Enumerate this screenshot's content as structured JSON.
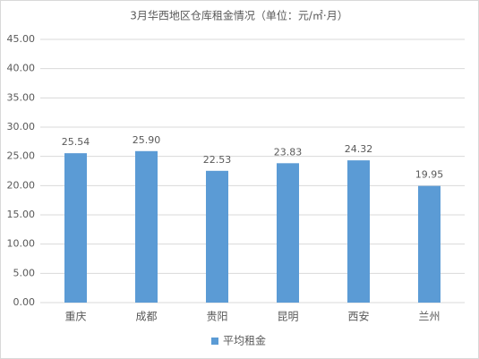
{
  "chart_data": {
    "type": "bar",
    "title": "3月华西地区仓库租金情况（单位：元/㎡·月）",
    "categories": [
      "重庆",
      "成都",
      "贵阳",
      "昆明",
      "西安",
      "兰州"
    ],
    "series": [
      {
        "name": "平均租金",
        "color": "#5b9bd5",
        "values": [
          25.54,
          25.9,
          22.53,
          23.83,
          24.32,
          19.95
        ],
        "value_labels": [
          "25.54",
          "25.90",
          "22.53",
          "23.83",
          "24.32",
          "19.95"
        ]
      }
    ],
    "ylim": [
      0,
      45
    ],
    "yticks": [
      {
        "value": 0,
        "label": "0.00"
      },
      {
        "value": 5,
        "label": "5.00"
      },
      {
        "value": 10,
        "label": "10.00"
      },
      {
        "value": 15,
        "label": "15.00"
      },
      {
        "value": 20,
        "label": "20.00"
      },
      {
        "value": 25,
        "label": "25.00"
      },
      {
        "value": 30,
        "label": "30.00"
      },
      {
        "value": 35,
        "label": "35.00"
      },
      {
        "value": 40,
        "label": "40.00"
      },
      {
        "value": 45,
        "label": "45.00"
      }
    ],
    "grid": true,
    "legend": "bottom"
  }
}
